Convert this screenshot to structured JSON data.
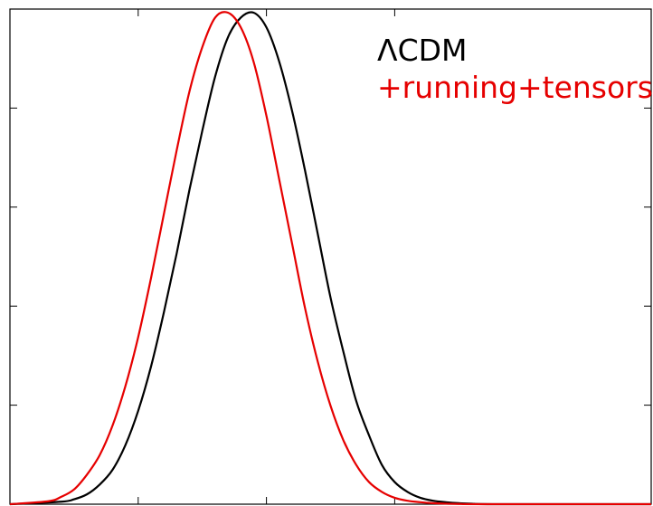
{
  "chart_data": {
    "type": "line",
    "title": "",
    "xlabel": "",
    "ylabel": "",
    "xlim": [
      0,
      1
    ],
    "ylim": [
      0,
      1
    ],
    "grid": false,
    "legend_placement": "top-right",
    "xticks": [
      0.2,
      0.4,
      0.6
    ],
    "yticks": [
      0.2,
      0.4,
      0.6,
      0.8
    ],
    "tick_labels_shown": false,
    "series": [
      {
        "name": "ΛCDM",
        "color": "#000000",
        "x": [
          0.0,
          0.08,
          0.1,
          0.12,
          0.14,
          0.16,
          0.18,
          0.2,
          0.22,
          0.24,
          0.26,
          0.28,
          0.3,
          0.32,
          0.34,
          0.36,
          0.38,
          0.4,
          0.42,
          0.44,
          0.46,
          0.48,
          0.5,
          0.52,
          0.54,
          0.56,
          0.58,
          0.6,
          0.62,
          0.64,
          0.66,
          0.68,
          0.7,
          0.72,
          0.76,
          1.0
        ],
        "y": [
          0.0,
          0.005,
          0.01,
          0.02,
          0.04,
          0.07,
          0.12,
          0.19,
          0.28,
          0.39,
          0.51,
          0.64,
          0.76,
          0.87,
          0.95,
          0.99,
          1.0,
          0.97,
          0.9,
          0.8,
          0.68,
          0.55,
          0.42,
          0.31,
          0.21,
          0.14,
          0.08,
          0.045,
          0.025,
          0.013,
          0.007,
          0.004,
          0.002,
          0.001,
          0.0,
          0.0
        ]
      },
      {
        "name": "+running+tensors",
        "color": "#e60000",
        "x": [
          0.0,
          0.06,
          0.08,
          0.1,
          0.12,
          0.14,
          0.16,
          0.18,
          0.2,
          0.22,
          0.24,
          0.26,
          0.28,
          0.3,
          0.32,
          0.34,
          0.36,
          0.38,
          0.4,
          0.42,
          0.44,
          0.46,
          0.48,
          0.5,
          0.52,
          0.54,
          0.56,
          0.58,
          0.6,
          0.62,
          0.64,
          0.66,
          0.68,
          0.7,
          0.74,
          1.0
        ],
        "y": [
          0.0,
          0.006,
          0.015,
          0.03,
          0.06,
          0.1,
          0.16,
          0.24,
          0.34,
          0.46,
          0.59,
          0.72,
          0.84,
          0.93,
          0.99,
          1.0,
          0.97,
          0.9,
          0.79,
          0.66,
          0.53,
          0.4,
          0.29,
          0.2,
          0.13,
          0.08,
          0.045,
          0.025,
          0.013,
          0.007,
          0.004,
          0.002,
          0.001,
          0.0005,
          0.0,
          0.0
        ]
      }
    ]
  }
}
